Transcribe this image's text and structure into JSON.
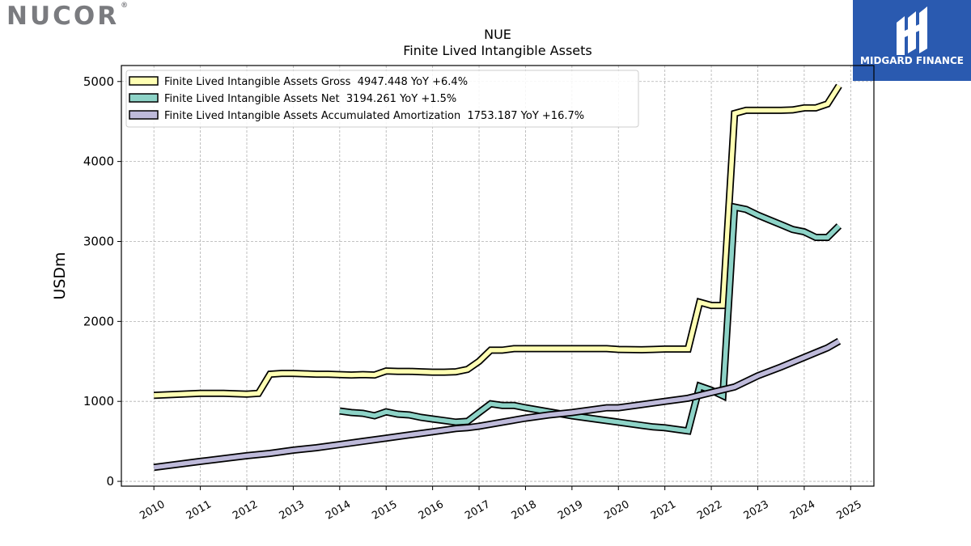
{
  "header": {
    "logo_text": "NUCOR",
    "logo_mark": "®",
    "brand_text": "MIDGARD FINANCE",
    "brand_icon": "midgard-finance-logo-icon",
    "brand_color": "#2a5ab0"
  },
  "chart_data": {
    "type": "line",
    "title": "NUE",
    "subtitle": "Finite Lived Intangible Assets",
    "ylabel": "USDm",
    "xlabel": "",
    "ylim": [
      -60,
      5200
    ],
    "xlim": [
      2009.3,
      2025.5
    ],
    "yticks": [
      0,
      1000,
      2000,
      3000,
      4000,
      5000
    ],
    "xticks": [
      "2010",
      "2011",
      "2012",
      "2013",
      "2014",
      "2015",
      "2016",
      "2017",
      "2018",
      "2019",
      "2020",
      "2021",
      "2022",
      "2023",
      "2024",
      "2025"
    ],
    "grid": true,
    "legend_position": "top-left",
    "series": [
      {
        "name": "Finite Lived Intangible Assets Gross  4947.448 YoY +6.4%",
        "color": "#ffffb3",
        "x": [
          2010.0,
          2011.0,
          2011.5,
          2012.0,
          2012.25,
          2012.5,
          2012.75,
          2013.0,
          2013.25,
          2013.5,
          2013.75,
          2014.0,
          2014.25,
          2014.5,
          2014.75,
          2015.0,
          2015.25,
          2015.5,
          2015.75,
          2016.0,
          2016.25,
          2016.5,
          2016.75,
          2017.0,
          2017.25,
          2017.5,
          2017.75,
          2018.0,
          2018.5,
          2019.0,
          2019.5,
          2019.75,
          2020.0,
          2020.5,
          2020.75,
          2021.0,
          2021.25,
          2021.5,
          2021.75,
          2022.0,
          2022.25,
          2022.5,
          2022.75,
          2023.0,
          2023.25,
          2023.5,
          2023.75,
          2024.0,
          2024.25,
          2024.5,
          2024.75
        ],
        "y": [
          1075,
          1100,
          1100,
          1090,
          1100,
          1340,
          1350,
          1350,
          1345,
          1340,
          1340,
          1335,
          1330,
          1335,
          1330,
          1380,
          1375,
          1375,
          1370,
          1365,
          1365,
          1370,
          1400,
          1500,
          1640,
          1640,
          1660,
          1660,
          1660,
          1660,
          1660,
          1660,
          1650,
          1645,
          1650,
          1655,
          1655,
          1655,
          2240,
          2200,
          2200,
          4600,
          4640,
          4640,
          4640,
          4640,
          4645,
          4670,
          4670,
          4720,
          4947
        ]
      },
      {
        "name": "Finite Lived Intangible Assets Net  3194.261 YoY +1.5%",
        "color": "#8dd3c7",
        "x": [
          2014.0,
          2014.25,
          2014.5,
          2014.75,
          2015.0,
          2015.25,
          2015.5,
          2015.75,
          2016.0,
          2016.25,
          2016.5,
          2016.75,
          2017.0,
          2017.25,
          2017.5,
          2017.75,
          2018.0,
          2018.5,
          2019.0,
          2019.5,
          2020.0,
          2020.5,
          2020.75,
          2021.0,
          2021.25,
          2021.5,
          2021.75,
          2022.0,
          2022.25,
          2022.5,
          2022.75,
          2023.0,
          2023.25,
          2023.5,
          2023.75,
          2024.0,
          2024.25,
          2024.5,
          2024.75
        ],
        "y": [
          880,
          860,
          850,
          820,
          870,
          840,
          830,
          800,
          780,
          760,
          740,
          750,
          860,
          970,
          950,
          950,
          920,
          870,
          820,
          780,
          740,
          700,
          680,
          670,
          650,
          630,
          1190,
          1140,
          1070,
          3430,
          3400,
          3330,
          3270,
          3210,
          3150,
          3120,
          3050,
          3050,
          3194
        ]
      },
      {
        "name": "Finite Lived Intangible Assets Accumulated Amortization  1753.187 YoY +16.7%",
        "color": "#bebada",
        "x": [
          2010.0,
          2011.0,
          2012.0,
          2012.5,
          2013.0,
          2013.5,
          2014.0,
          2014.5,
          2015.0,
          2015.5,
          2016.0,
          2016.5,
          2016.75,
          2017.0,
          2017.5,
          2018.0,
          2018.5,
          2019.0,
          2019.75,
          2020.0,
          2020.5,
          2021.0,
          2021.5,
          2022.0,
          2022.5,
          2023.0,
          2023.5,
          2024.0,
          2024.5,
          2024.75
        ],
        "y": [
          175,
          250,
          320,
          350,
          390,
          420,
          460,
          500,
          540,
          580,
          620,
          660,
          670,
          690,
          740,
          790,
          830,
          860,
          920,
          920,
          960,
          1000,
          1040,
          1110,
          1180,
          1320,
          1430,
          1550,
          1670,
          1753
        ]
      }
    ]
  }
}
